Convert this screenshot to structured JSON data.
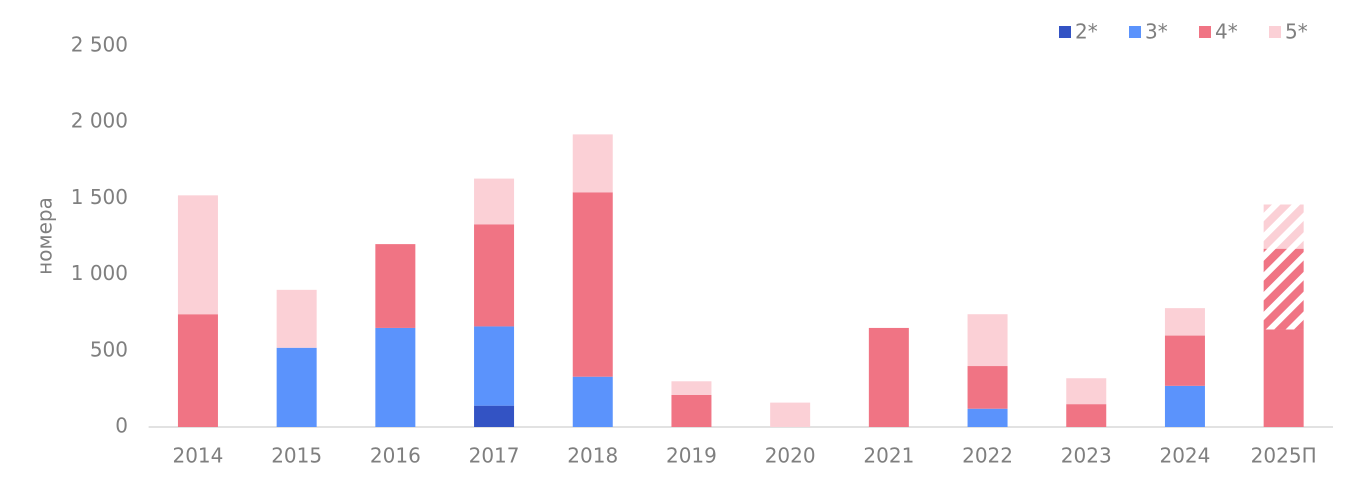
{
  "chart_data": {
    "type": "stacked-bar",
    "y_label": "номера",
    "categories": [
      "2014",
      "2015",
      "2016",
      "2017",
      "2018",
      "2019",
      "2020",
      "2021",
      "2022",
      "2023",
      "2024",
      "2025П"
    ],
    "series": [
      {
        "name": "2*",
        "color": "#3353c4",
        "values": [
          null,
          null,
          null,
          140,
          null,
          null,
          null,
          null,
          null,
          null,
          null,
          null
        ]
      },
      {
        "name": "3*",
        "color": "#5b93fc",
        "values": [
          null,
          520,
          650,
          520,
          330,
          null,
          null,
          null,
          120,
          null,
          270,
          null
        ]
      },
      {
        "name": "4*",
        "color": "#f07484",
        "values": [
          740,
          null,
          550,
          670,
          1210,
          210,
          null,
          650,
          280,
          150,
          330,
          640
        ]
      },
      {
        "name": "5*",
        "color": "#fbd0d6",
        "values": [
          780,
          380,
          null,
          300,
          380,
          90,
          160,
          null,
          340,
          170,
          180,
          null
        ]
      },
      {
        "name": "4*",
        "color": "#f07484",
        "hatched": true,
        "values": [
          null,
          null,
          null,
          null,
          null,
          null,
          null,
          null,
          null,
          null,
          null,
          530
        ]
      },
      {
        "name": "5*",
        "color": "#fbd0d6",
        "hatched": true,
        "values": [
          null,
          null,
          null,
          null,
          null,
          null,
          null,
          null,
          null,
          null,
          null,
          290
        ]
      }
    ],
    "ylim": [
      0,
      2500
    ],
    "yticks": [
      0,
      500,
      {
        "value": 1000,
        "label": "1 000"
      },
      {
        "value": 1500,
        "label": "1 500"
      },
      {
        "value": 2000,
        "label": "2 000"
      },
      {
        "value": 2500,
        "label": "2 500"
      }
    ],
    "legend": "top-right"
  }
}
